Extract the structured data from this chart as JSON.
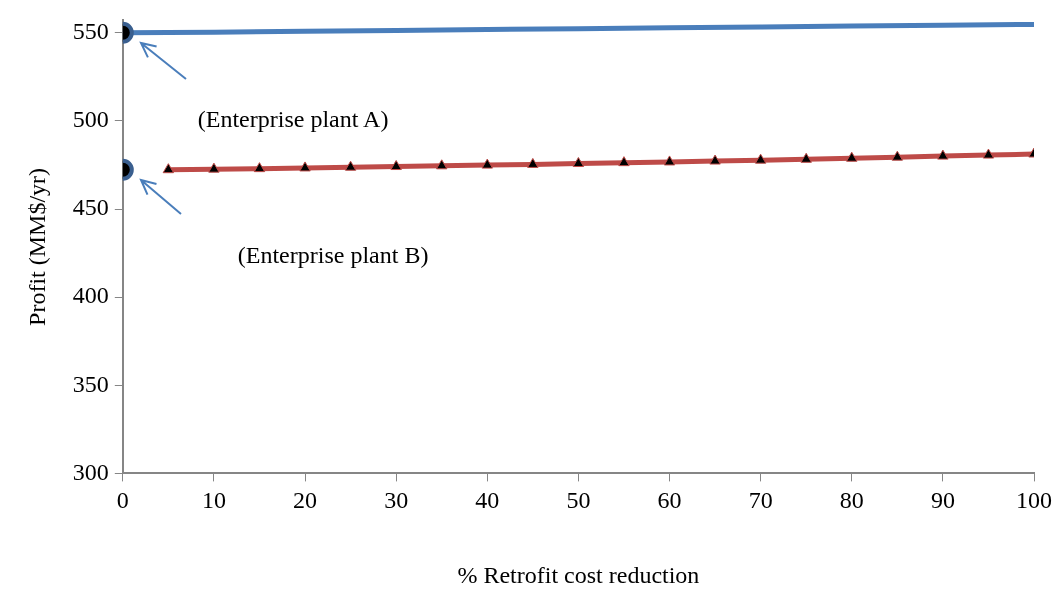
{
  "chart_data": {
    "type": "line",
    "xlabel": "% Retrofit cost reduction",
    "ylabel": "Profit (MM$/yr)",
    "xlim": [
      0,
      100
    ],
    "xticks": [
      0,
      10,
      20,
      30,
      40,
      50,
      60,
      70,
      80,
      90,
      100
    ],
    "ylim": [
      300,
      557
    ],
    "yticks": [
      300,
      350,
      400,
      450,
      500,
      550
    ],
    "grid": false,
    "legend": false,
    "series": [
      {
        "color": "#4a7ebb",
        "marker": "none",
        "x": [
          0,
          10,
          20,
          30,
          40,
          50,
          60,
          70,
          80,
          90,
          100
        ],
        "values": [
          550,
          550.3,
          550.8,
          551.2,
          551.8,
          552.3,
          552.8,
          553.3,
          553.8,
          554.3,
          554.7
        ]
      },
      {
        "color": "#be4b48",
        "marker": "triangle",
        "x": [
          5,
          10,
          15,
          20,
          25,
          30,
          35,
          40,
          45,
          50,
          55,
          60,
          65,
          70,
          75,
          80,
          85,
          90,
          95,
          100
        ],
        "values": [
          472.3,
          472.6,
          472.9,
          473.3,
          473.7,
          474.1,
          474.5,
          474.9,
          475.3,
          475.8,
          476.3,
          476.7,
          477.2,
          477.7,
          478.2,
          478.8,
          479.4,
          480,
          480.6,
          481.2
        ]
      },
      {
        "type": "scatter",
        "color": "#3a5f8f",
        "marker": "circle",
        "x": [
          0,
          0
        ],
        "values": [
          550,
          472.3
        ]
      }
    ],
    "annotations": [
      "(Enterprise plant A)",
      "(Enterprise plant B)"
    ]
  }
}
